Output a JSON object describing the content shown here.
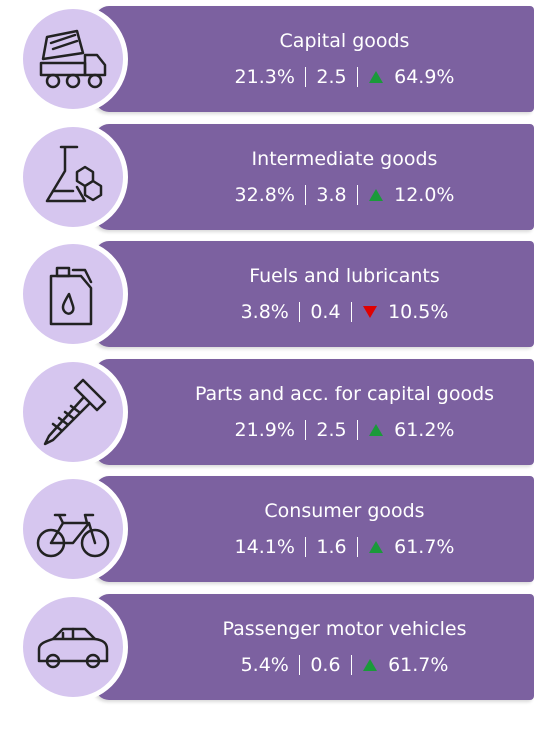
{
  "items": [
    {
      "label": "Capital goods",
      "share": "21.3%",
      "value": "2.5",
      "change": "64.9%",
      "trend": "up"
    },
    {
      "label": "Intermediate goods",
      "share": "32.8%",
      "value": "3.8",
      "change": "12.0%",
      "trend": "up"
    },
    {
      "label": "Fuels and lubricants",
      "share": "3.8%",
      "value": "0.4",
      "change": "10.5%",
      "trend": "down"
    },
    {
      "label": "Parts and acc. for capital goods",
      "share": "21.9%",
      "value": "2.5",
      "change": "61.2%",
      "trend": "up"
    },
    {
      "label": "Consumer goods",
      "share": "14.1%",
      "value": "1.6",
      "change": "61.7%",
      "trend": "up"
    },
    {
      "label": "Passenger motor vehicles",
      "share": "5.4%",
      "value": "0.6",
      "change": "61.7%",
      "trend": "up"
    }
  ]
}
